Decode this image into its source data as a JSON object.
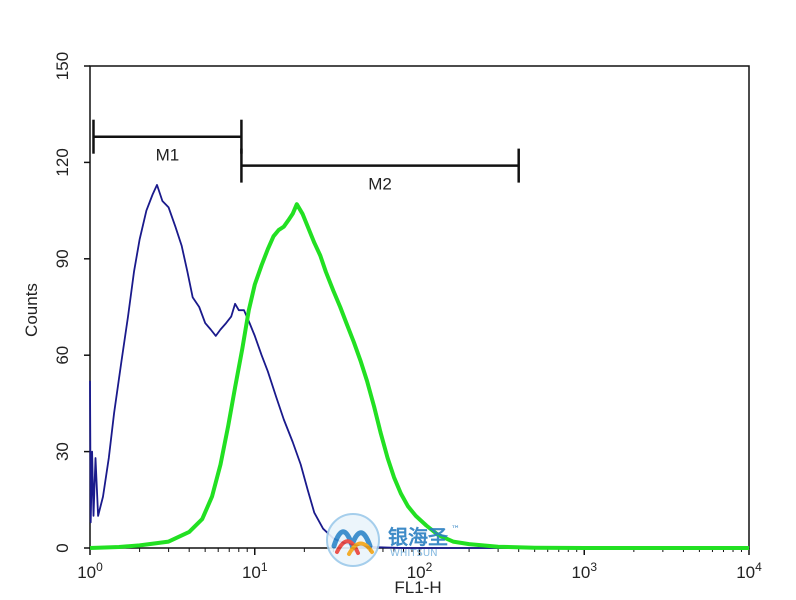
{
  "chart_data": {
    "type": "line",
    "xlabel": "FL1-H",
    "ylabel": "Counts",
    "x_scale": "log",
    "xlim": [
      1,
      10000
    ],
    "ylim": [
      0,
      150
    ],
    "grid": false,
    "x_ticks": [
      {
        "value": 1,
        "base": "10",
        "exp": "0"
      },
      {
        "value": 10,
        "base": "10",
        "exp": "1"
      },
      {
        "value": 100,
        "base": "10",
        "exp": "2"
      },
      {
        "value": 1000,
        "base": "10",
        "exp": "3"
      },
      {
        "value": 10000,
        "base": "10",
        "exp": "4"
      }
    ],
    "y_ticks": [
      {
        "value": 0,
        "label": "0"
      },
      {
        "value": 30,
        "label": "30"
      },
      {
        "value": 60,
        "label": "60"
      },
      {
        "value": 90,
        "label": "90"
      },
      {
        "value": 120,
        "label": "120"
      },
      {
        "value": 150,
        "label": "150"
      }
    ],
    "gates": [
      {
        "label": "M1",
        "x_start": 1.05,
        "x_end": 8.3,
        "y": 128
      },
      {
        "label": "M2",
        "x_start": 8.3,
        "x_end": 400,
        "y": 119
      }
    ],
    "series": [
      {
        "color": "#1a1a8c",
        "points": [
          [
            1.0,
            52
          ],
          [
            1.01,
            8
          ],
          [
            1.03,
            30
          ],
          [
            1.05,
            10
          ],
          [
            1.08,
            28
          ],
          [
            1.12,
            10
          ],
          [
            1.2,
            16
          ],
          [
            1.3,
            28
          ],
          [
            1.4,
            42
          ],
          [
            1.55,
            58
          ],
          [
            1.7,
            72
          ],
          [
            1.85,
            86
          ],
          [
            2.0,
            96
          ],
          [
            2.2,
            105
          ],
          [
            2.4,
            110
          ],
          [
            2.55,
            113
          ],
          [
            2.75,
            108
          ],
          [
            3.0,
            106
          ],
          [
            3.3,
            100
          ],
          [
            3.6,
            94
          ],
          [
            3.9,
            86
          ],
          [
            4.2,
            78
          ],
          [
            4.6,
            75
          ],
          [
            5.0,
            70
          ],
          [
            5.4,
            68
          ],
          [
            5.8,
            66
          ],
          [
            6.2,
            68
          ],
          [
            6.7,
            70
          ],
          [
            7.2,
            72
          ],
          [
            7.6,
            76
          ],
          [
            8.0,
            74
          ],
          [
            8.6,
            74
          ],
          [
            9.3,
            70
          ],
          [
            10.0,
            66
          ],
          [
            11.0,
            60
          ],
          [
            12.0,
            55
          ],
          [
            13.5,
            47
          ],
          [
            15.0,
            40
          ],
          [
            17.0,
            33
          ],
          [
            19.0,
            26
          ],
          [
            21.0,
            18
          ],
          [
            23.0,
            11
          ],
          [
            26.0,
            6
          ],
          [
            30.0,
            3
          ],
          [
            35.0,
            1.5
          ],
          [
            45.0,
            0.5
          ],
          [
            60.0,
            0.2
          ],
          [
            80.0,
            0
          ],
          [
            10000,
            0
          ]
        ]
      },
      {
        "color": "#22e022",
        "points": [
          [
            1.0,
            0
          ],
          [
            1.5,
            0.3
          ],
          [
            2.0,
            0.8
          ],
          [
            3.0,
            2
          ],
          [
            4.0,
            5
          ],
          [
            4.8,
            9
          ],
          [
            5.5,
            16
          ],
          [
            6.2,
            26
          ],
          [
            6.9,
            38
          ],
          [
            7.6,
            50
          ],
          [
            8.4,
            62
          ],
          [
            9.2,
            74
          ],
          [
            10.0,
            82
          ],
          [
            11.0,
            88
          ],
          [
            12.0,
            93
          ],
          [
            13.0,
            97
          ],
          [
            14.0,
            99
          ],
          [
            15.0,
            100
          ],
          [
            16.0,
            102
          ],
          [
            17.0,
            104
          ],
          [
            18.0,
            107
          ],
          [
            19.5,
            104
          ],
          [
            21.0,
            100
          ],
          [
            23.0,
            95
          ],
          [
            25.0,
            91
          ],
          [
            27.0,
            86
          ],
          [
            30.0,
            80
          ],
          [
            33.0,
            75
          ],
          [
            36.0,
            70
          ],
          [
            40.0,
            64
          ],
          [
            44.0,
            58
          ],
          [
            48.0,
            52
          ],
          [
            53.0,
            44
          ],
          [
            58.0,
            36
          ],
          [
            64.0,
            28
          ],
          [
            70.0,
            22
          ],
          [
            77.0,
            17
          ],
          [
            85.0,
            13
          ],
          [
            95.0,
            10
          ],
          [
            110.0,
            7
          ],
          [
            130.0,
            4
          ],
          [
            160.0,
            2
          ],
          [
            200.0,
            1.2
          ],
          [
            300.0,
            0.4
          ],
          [
            500.0,
            0.1
          ],
          [
            1000.0,
            0
          ],
          [
            10000,
            0
          ]
        ]
      }
    ]
  },
  "watermark": {
    "brand_cn": "银海圣",
    "tm": "™",
    "brand_en": "WHITSUN"
  }
}
